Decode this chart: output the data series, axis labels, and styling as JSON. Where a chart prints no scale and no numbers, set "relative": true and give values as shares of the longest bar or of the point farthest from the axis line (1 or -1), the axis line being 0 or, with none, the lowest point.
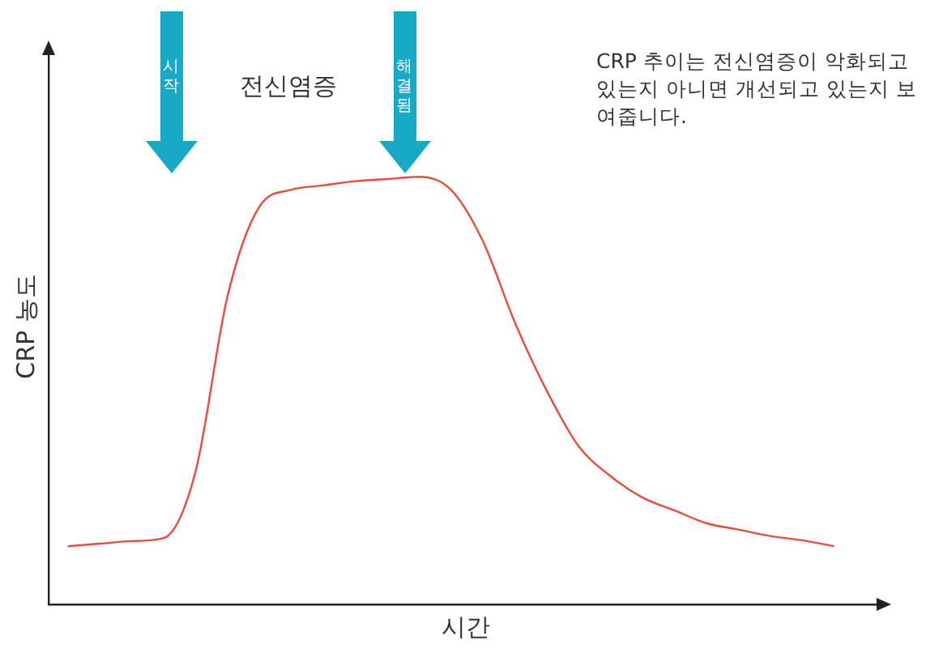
{
  "chart_data": {
    "type": "line",
    "relative": true,
    "xlabel": "시간",
    "ylabel": "CRP 농도",
    "categories": [
      null,
      null,
      null,
      null,
      null,
      null,
      null,
      null,
      null,
      null,
      null,
      null,
      null,
      null,
      null,
      null,
      null,
      null,
      null,
      null,
      null,
      null,
      null,
      null,
      null
    ],
    "series": [
      {
        "color": "#ee4a3c",
        "values": [
          0.136,
          0.142,
          0.148,
          0.155,
          0.31,
          0.72,
          0.93,
          0.97,
          0.98,
          0.99,
          0.995,
          1.0,
          0.97,
          0.85,
          0.66,
          0.5,
          0.37,
          0.3,
          0.25,
          0.22,
          0.19,
          0.175,
          0.16,
          0.15,
          0.136
        ]
      }
    ],
    "annotations": [
      "시작",
      "해결됨",
      "전신염증",
      "CRP 추이는 전신염증이 악화되고 있는지 아니면 개선되고 있는지 보여줍니다."
    ],
    "grid": false,
    "legend": false,
    "tick_labels": false,
    "marker": "none",
    "line_style": "solid"
  }
}
